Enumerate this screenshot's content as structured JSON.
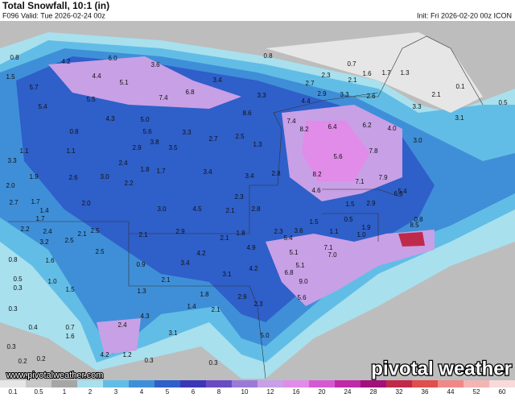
{
  "header": {
    "title": "Total Snowfall, 10:1 (in)",
    "valid": "F096 Valid: Tue 2026-02-24 00z",
    "init": "Init: Fri 2026-02-20 00z ICON"
  },
  "map_labels": [
    "0.8",
    "4.2",
    "6.0",
    "3.6",
    "0.8",
    "0.7",
    "1.6",
    "1.7",
    "1.3",
    "4.4",
    "5.1",
    "3.4",
    "2.7",
    "2.3",
    "2.1",
    "0.1",
    "1.5",
    "5.7",
    "5.5",
    "7.4",
    "6.8",
    "3.3",
    "4.4",
    "2.9",
    "3.3",
    "2.6",
    "2.1",
    "0.5",
    "5.4",
    "3.3",
    "4.3",
    "5.0",
    "8.6",
    "7.4",
    "6.4",
    "6.2",
    "4.0",
    "8.2",
    "3.1",
    "5.6",
    "3.3",
    "2.7",
    "2.5",
    "1.3",
    "0.8",
    "1.1",
    "3.8",
    "3.5",
    "2.9",
    "2.4",
    "1.1",
    "5.6",
    "7.8",
    "3.0",
    "3.3",
    "1.9",
    "2.6",
    "3.0",
    "1.8",
    "1.7",
    "3.4",
    "3.4",
    "2.8",
    "8.2",
    "7.9",
    "7.1",
    "5.4",
    "2.0",
    "2.2",
    "2.7",
    "1.7",
    "2.0",
    "6.6",
    "2.3",
    "4.6",
    "1.5",
    "2.9",
    "3.0",
    "4.5",
    "2.1",
    "2.8",
    "1.4",
    "1.7",
    "2.1",
    "2.5",
    "1.5",
    "0.5",
    "0.8",
    "8.5",
    "1.1",
    "1.0",
    "1.9",
    "2.2",
    "2.4",
    "2.5",
    "2.1",
    "2.9",
    "2.1",
    "1.8",
    "3.2",
    "4.9",
    "2.3",
    "3.6",
    "5.4",
    "1.6",
    "2.5",
    "4.2",
    "3.4",
    "7.1",
    "7.0",
    "0.8",
    "5.1",
    "5.1",
    "4.2",
    "0.9",
    "3.1",
    "1.0",
    "1.5",
    "0.5",
    "0.3",
    "2.1",
    "6.8",
    "9.0",
    "1.8",
    "1.3",
    "5.6",
    "2.9",
    "0.3",
    "2.3",
    "1.4",
    "2.1",
    "4.3",
    "2.4",
    "0.4",
    "0.7",
    "1.6",
    "3.1",
    "5.0",
    "0.3",
    "0.2",
    "4.2",
    "1.2",
    "0.2",
    "0.3",
    "0.3"
  ],
  "watermark": "www.pivotalweather.com",
  "logo": "pivotal weather",
  "colorbar": {
    "ticks": [
      0.1,
      0.5,
      1,
      2,
      3,
      4,
      5,
      6,
      8,
      10,
      12,
      16,
      20,
      24,
      28,
      32,
      36,
      44,
      52,
      60
    ],
    "colors": [
      "#e6e6e6",
      "#c8c8c8",
      "#a6a6a6",
      "#a8e0ee",
      "#62bde6",
      "#3f8fd8",
      "#2f5fc9",
      "#3a38b6",
      "#6a4cc2",
      "#9a7ad6",
      "#c8a0e6",
      "#e08ce8",
      "#d45ad2",
      "#c02aa8",
      "#a0127a",
      "#c02a4a",
      "#e04e4e",
      "#f08888",
      "#f4b4b4",
      "#f8dada"
    ]
  }
}
